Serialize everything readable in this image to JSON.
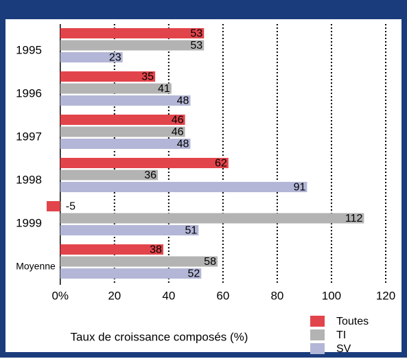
{
  "chart_data": {
    "type": "hbar",
    "xlabel": "Taux de croissance composés (%)",
    "categories": [
      "1995",
      "1996",
      "1997",
      "1998",
      "1999",
      "Moyenne"
    ],
    "series": [
      {
        "name": "Toutes",
        "color": "#e2444b",
        "values": [
          53,
          35,
          46,
          62,
          -5,
          38
        ]
      },
      {
        "name": "TI",
        "color": "#b3b3b3",
        "values": [
          53,
          41,
          46,
          36,
          112,
          58
        ]
      },
      {
        "name": "SV",
        "color": "#b3b6d6",
        "values": [
          23,
          48,
          48,
          91,
          51,
          52
        ]
      }
    ],
    "xlim": [
      -5,
      120
    ],
    "xticks": [
      {
        "value": 0,
        "label": "0%"
      },
      20,
      40,
      60,
      80,
      100,
      120
    ],
    "grid": true
  }
}
